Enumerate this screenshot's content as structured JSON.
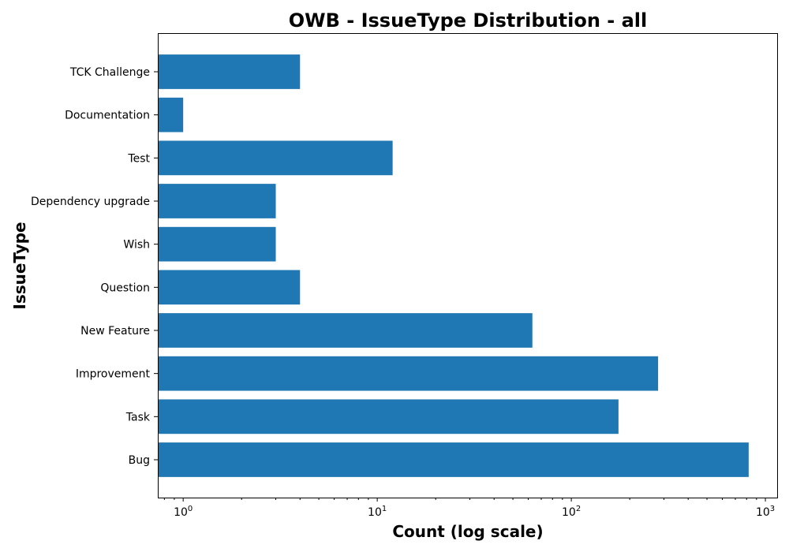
{
  "chart_data": {
    "type": "bar",
    "orientation": "horizontal",
    "title": "OWB - IssueType Distribution - all",
    "xlabel": "Count (log scale)",
    "ylabel": "IssueType",
    "xscale": "log",
    "xlim": [
      0.74,
      1150
    ],
    "x_ticks": [
      {
        "base": "10",
        "exp": "0",
        "value": 1
      },
      {
        "base": "10",
        "exp": "1",
        "value": 10
      },
      {
        "base": "10",
        "exp": "2",
        "value": 100
      },
      {
        "base": "10",
        "exp": "3",
        "value": 1000
      }
    ],
    "categories": [
      "Bug",
      "Task",
      "Improvement",
      "New Feature",
      "Question",
      "Wish",
      "Dependency upgrade",
      "Test",
      "Documentation",
      "TCK Challenge"
    ],
    "values": [
      820,
      175,
      280,
      63,
      4,
      3,
      3,
      12,
      1,
      4
    ],
    "bar_color": "#1f77b4",
    "grid": false,
    "legend": "none"
  }
}
